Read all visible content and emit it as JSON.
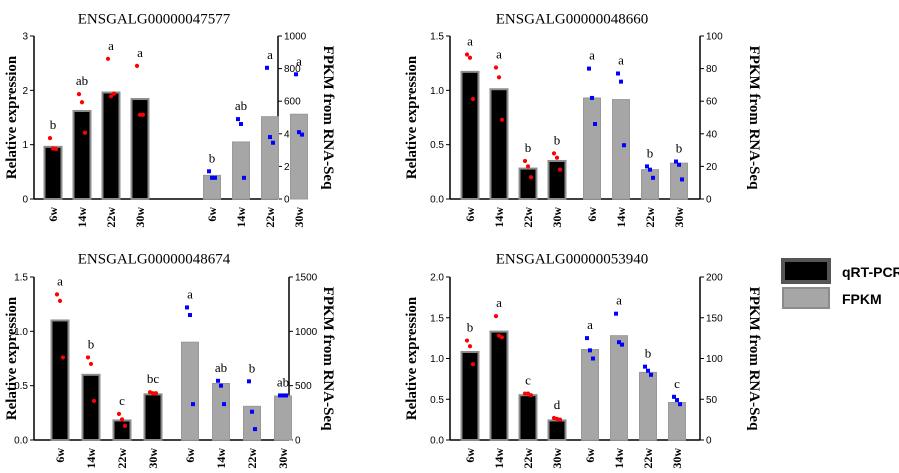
{
  "legend": {
    "position": "right",
    "items": [
      {
        "label": "qRT-PCR",
        "color": "#000000"
      },
      {
        "label": "FPKM",
        "color": "#a6a6a6"
      }
    ]
  },
  "colors": {
    "qpcr": "#000000",
    "fpkm": "#a6a6a6",
    "qpcr_points": "#ff0000",
    "fpkm_points": "#0000ff"
  },
  "chart_data": [
    {
      "type": "bar",
      "title": "ENSGALG00000047577",
      "ylabel": "Relative expression",
      "y2label": "FPKM from RNA-Seq",
      "categories": [
        "6w",
        "14w",
        "22w",
        "30w"
      ],
      "ylim": [
        0,
        3
      ],
      "yticks": [
        0,
        1,
        2,
        3
      ],
      "ytick_labels": [
        "0",
        "1",
        "2",
        "3"
      ],
      "y2lim": [
        0,
        1000
      ],
      "y2ticks": [
        0,
        200,
        400,
        600,
        800,
        1000
      ],
      "y2tick_labels": [
        "0",
        "200",
        "400",
        "600",
        "800",
        "1000"
      ],
      "series": [
        {
          "name": "qRT-PCR",
          "axis": "left",
          "values": [
            0.96,
            1.62,
            1.96,
            1.84
          ],
          "points": [
            [
              1.12,
              0.93,
              0.92
            ],
            [
              1.93,
              1.78,
              1.22
            ],
            [
              2.58,
              1.89,
              1.94
            ],
            [
              2.45,
              1.55,
              1.55
            ]
          ],
          "letters": [
            "b",
            "ab",
            "a",
            "a"
          ]
        },
        {
          "name": "FPKM",
          "axis": "right",
          "values": [
            145,
            350,
            505,
            520
          ],
          "points": [
            [
              170,
              130,
              130
            ],
            [
              490,
              460,
              130
            ],
            [
              805,
              380,
              345
            ],
            [
              765,
              410,
              395
            ]
          ],
          "letters": [
            "b",
            "ab",
            "a",
            "a"
          ]
        }
      ]
    },
    {
      "type": "bar",
      "title": "ENSGALG00000048660",
      "ylabel": "Relative expression",
      "y2label": "FPKM from RNA-Seq",
      "categories": [
        "6w",
        "14w",
        "22w",
        "30w"
      ],
      "ylim": [
        0,
        1.5
      ],
      "yticks": [
        0,
        0.5,
        1,
        1.5
      ],
      "ytick_labels": [
        "0.0",
        "0.5",
        "1.0",
        "1.5"
      ],
      "y2lim": [
        0,
        100
      ],
      "y2ticks": [
        0,
        20,
        40,
        60,
        80,
        100
      ],
      "y2tick_labels": [
        "0",
        "20",
        "40",
        "60",
        "80",
        "100"
      ],
      "series": [
        {
          "name": "qRT-PCR",
          "axis": "left",
          "values": [
            1.17,
            1.01,
            0.28,
            0.35
          ],
          "points": [
            [
              1.33,
              1.3,
              0.92
            ],
            [
              1.21,
              1.12,
              0.73
            ],
            [
              0.35,
              0.3,
              0.2
            ],
            [
              0.42,
              0.38,
              0.27
            ]
          ],
          "letters": [
            "a",
            "a",
            "b",
            "b"
          ]
        },
        {
          "name": "FPKM",
          "axis": "right",
          "values": [
            62,
            61,
            18,
            22
          ],
          "points": [
            [
              80,
              62,
              46
            ],
            [
              77,
              72,
              33
            ],
            [
              20,
              18,
              13
            ],
            [
              23,
              21,
              12
            ]
          ],
          "letters": [
            "a",
            "a",
            "b",
            "b"
          ]
        }
      ]
    },
    {
      "type": "bar",
      "title": "ENSGALG00000048674",
      "ylabel": "Relative expression",
      "y2label": "FPKM from RNA-Seq",
      "categories": [
        "6w",
        "14w",
        "22w",
        "30w"
      ],
      "ylim": [
        0,
        1.5
      ],
      "yticks": [
        0,
        0.5,
        1,
        1.5
      ],
      "ytick_labels": [
        "0.0",
        "0.5",
        "1.0",
        "1.5"
      ],
      "y2lim": [
        0,
        1500
      ],
      "y2ticks": [
        0,
        500,
        1000,
        1500
      ],
      "y2tick_labels": [
        "0",
        "500",
        "1000",
        "1500"
      ],
      "series": [
        {
          "name": "qRT-PCR",
          "axis": "left",
          "values": [
            1.1,
            0.6,
            0.18,
            0.42
          ],
          "points": [
            [
              1.34,
              1.28,
              0.76
            ],
            [
              0.76,
              0.7,
              0.36
            ],
            [
              0.24,
              0.19,
              0.13
            ],
            [
              0.44,
              0.43,
              0.43
            ]
          ],
          "letters": [
            "a",
            "b",
            "c",
            "bc"
          ]
        },
        {
          "name": "FPKM",
          "axis": "right",
          "values": [
            900,
            520,
            310,
            405
          ],
          "points": [
            [
              1220,
              1150,
              330
            ],
            [
              545,
              500,
              330
            ],
            [
              540,
              260,
              100
            ],
            [
              410,
              410,
              410
            ]
          ],
          "letters": [
            "a",
            "ab",
            "b",
            "ab"
          ]
        }
      ]
    },
    {
      "type": "bar",
      "title": "ENSGALG00000053940",
      "ylabel": "Relative expression",
      "y2label": "FPKM from RNA-Seq",
      "categories": [
        "6w",
        "14w",
        "22w",
        "30w"
      ],
      "ylim": [
        0,
        2
      ],
      "yticks": [
        0,
        0.5,
        1,
        1.5,
        2
      ],
      "ytick_labels": [
        "0.0",
        "0.5",
        "1.0",
        "1.5",
        "2.0"
      ],
      "y2lim": [
        0,
        200
      ],
      "y2ticks": [
        0,
        50,
        100,
        150,
        200
      ],
      "y2tick_labels": [
        "0",
        "50",
        "100",
        "150",
        "200"
      ],
      "series": [
        {
          "name": "qRT-PCR",
          "axis": "left",
          "values": [
            1.08,
            1.33,
            0.55,
            0.24
          ],
          "points": [
            [
              1.22,
              1.15,
              0.93
            ],
            [
              1.52,
              1.28,
              1.26
            ],
            [
              0.57,
              0.57,
              0.55
            ],
            [
              0.27,
              0.26,
              0.25
            ]
          ],
          "letters": [
            "b",
            "a",
            "c",
            "d"
          ]
        },
        {
          "name": "FPKM",
          "axis": "right",
          "values": [
            111,
            128,
            83,
            46
          ],
          "points": [
            [
              125,
              110,
              100
            ],
            [
              155,
              120,
              117
            ],
            [
              90,
              85,
              80
            ],
            [
              53,
              49,
              44
            ]
          ],
          "letters": [
            "a",
            "a",
            "b",
            "c"
          ]
        }
      ]
    }
  ]
}
